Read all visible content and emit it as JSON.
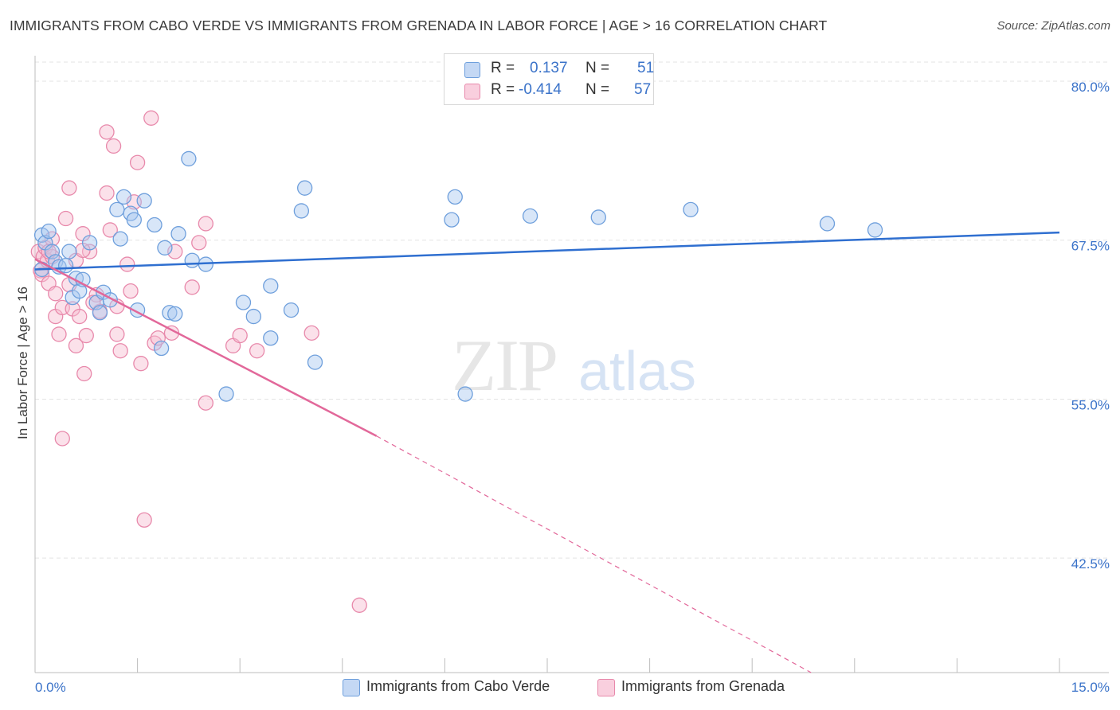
{
  "title": "IMMIGRANTS FROM CABO VERDE VS IMMIGRANTS FROM GRENADA IN LABOR FORCE | AGE > 16 CORRELATION CHART",
  "source": "Source: ZipAtlas.com",
  "watermark": {
    "zip": "ZIP",
    "atlas": "atlas"
  },
  "legend": {
    "r_label": "R =",
    "n_label": "N =",
    "series1": {
      "r": "0.137",
      "n": "51"
    },
    "series2": {
      "r": "-0.414",
      "n": "57"
    }
  },
  "colors": {
    "blue_fill": "#a9c7ef",
    "blue_stroke": "#6e9fdc",
    "blue_line": "#2f6fd0",
    "pink_fill": "#f6bcd0",
    "pink_stroke": "#e889ab",
    "pink_line": "#e2689a",
    "axis_label": "#3b73c9",
    "grid": "#e3e3e3"
  },
  "chart_data": {
    "type": "scatter",
    "title": "IMMIGRANTS FROM CABO VERDE VS IMMIGRANTS FROM GRENADA IN LABOR FORCE | AGE > 16 CORRELATION CHART",
    "xlabel": "",
    "ylabel": "In Labor Force | Age > 16",
    "xlim": [
      0,
      15
    ],
    "ylim": [
      33.5,
      82
    ],
    "x_tick_labels": [
      "0.0%",
      "15.0%"
    ],
    "y_ticks": [
      80,
      67.5,
      55,
      42.5
    ],
    "y_tick_labels": [
      "80.0%",
      "67.5%",
      "55.0%",
      "42.5%"
    ],
    "grid": true,
    "legend_position": "top-center",
    "series": [
      {
        "name": "Immigrants from Cabo Verde",
        "color": "blue",
        "r": 0.137,
        "n": 51,
        "trend": {
          "x0": 0,
          "y0": 65.2,
          "x1": 15,
          "y1": 68.1
        },
        "points": [
          [
            0.1,
            67.9
          ],
          [
            0.15,
            67.3
          ],
          [
            0.2,
            68.2
          ],
          [
            0.25,
            66.6
          ],
          [
            0.3,
            65.8
          ],
          [
            0.35,
            65.4
          ],
          [
            0.5,
            66.6
          ],
          [
            0.55,
            63.0
          ],
          [
            0.6,
            64.5
          ],
          [
            0.65,
            63.5
          ],
          [
            0.7,
            64.4
          ],
          [
            0.8,
            67.3
          ],
          [
            0.9,
            62.6
          ],
          [
            0.95,
            61.8
          ],
          [
            1.0,
            63.4
          ],
          [
            1.1,
            62.8
          ],
          [
            1.2,
            69.9
          ],
          [
            1.25,
            67.6
          ],
          [
            1.3,
            70.9
          ],
          [
            1.4,
            69.6
          ],
          [
            1.45,
            69.1
          ],
          [
            1.5,
            62.0
          ],
          [
            1.6,
            70.6
          ],
          [
            1.75,
            68.7
          ],
          [
            1.85,
            59.0
          ],
          [
            1.9,
            66.9
          ],
          [
            1.97,
            61.8
          ],
          [
            2.05,
            61.7
          ],
          [
            2.1,
            68.0
          ],
          [
            2.25,
            73.9
          ],
          [
            2.3,
            65.9
          ],
          [
            2.5,
            65.6
          ],
          [
            2.8,
            55.4
          ],
          [
            3.05,
            62.6
          ],
          [
            3.2,
            61.5
          ],
          [
            3.45,
            59.8
          ],
          [
            3.45,
            63.9
          ],
          [
            3.9,
            69.8
          ],
          [
            3.95,
            71.6
          ],
          [
            3.75,
            62.0
          ],
          [
            4.1,
            57.9
          ],
          [
            6.1,
            69.1
          ],
          [
            6.15,
            70.9
          ],
          [
            6.3,
            55.4
          ],
          [
            7.25,
            69.4
          ],
          [
            8.25,
            69.3
          ],
          [
            9.6,
            69.9
          ],
          [
            11.6,
            68.8
          ],
          [
            12.3,
            68.3
          ],
          [
            0.1,
            65.2
          ],
          [
            0.45,
            65.5
          ]
        ]
      },
      {
        "name": "Immigrants from Grenada",
        "color": "pink",
        "r": -0.414,
        "n": 57,
        "trend": {
          "x0": 0,
          "y0": 66.0,
          "x1": 5.0,
          "y1": 52.1,
          "dash_x1": 12.8,
          "dash_y1": 29.3
        },
        "points": [
          [
            0.05,
            66.6
          ],
          [
            0.08,
            65.1
          ],
          [
            0.1,
            64.8
          ],
          [
            0.12,
            66.2
          ],
          [
            0.15,
            66.9
          ],
          [
            0.18,
            65.9
          ],
          [
            0.2,
            64.1
          ],
          [
            0.25,
            66.2
          ],
          [
            0.25,
            67.6
          ],
          [
            0.3,
            63.3
          ],
          [
            0.3,
            61.5
          ],
          [
            0.35,
            60.1
          ],
          [
            0.4,
            62.2
          ],
          [
            0.4,
            51.9
          ],
          [
            0.45,
            69.2
          ],
          [
            0.5,
            71.6
          ],
          [
            0.5,
            64.0
          ],
          [
            0.55,
            62.1
          ],
          [
            0.6,
            59.2
          ],
          [
            0.65,
            61.5
          ],
          [
            0.7,
            68.0
          ],
          [
            0.72,
            57.0
          ],
          [
            0.75,
            60.0
          ],
          [
            0.8,
            66.6
          ],
          [
            0.9,
            63.2
          ],
          [
            0.95,
            61.9
          ],
          [
            1.05,
            71.2
          ],
          [
            1.1,
            68.3
          ],
          [
            1.15,
            74.9
          ],
          [
            1.2,
            60.1
          ],
          [
            1.25,
            58.8
          ],
          [
            1.35,
            65.6
          ],
          [
            1.4,
            63.5
          ],
          [
            1.45,
            70.5
          ],
          [
            1.5,
            73.6
          ],
          [
            1.55,
            57.8
          ],
          [
            1.6,
            45.5
          ],
          [
            1.7,
            77.1
          ],
          [
            1.75,
            59.4
          ],
          [
            1.8,
            59.8
          ],
          [
            2.0,
            60.2
          ],
          [
            2.05,
            66.6
          ],
          [
            2.3,
            63.8
          ],
          [
            2.4,
            67.3
          ],
          [
            2.5,
            68.8
          ],
          [
            2.5,
            54.7
          ],
          [
            2.9,
            59.2
          ],
          [
            3.0,
            60.0
          ],
          [
            3.25,
            58.8
          ],
          [
            4.05,
            60.2
          ],
          [
            4.75,
            38.8
          ],
          [
            1.05,
            76.0
          ],
          [
            0.6,
            65.9
          ],
          [
            0.7,
            66.7
          ],
          [
            1.2,
            62.3
          ],
          [
            0.85,
            62.6
          ],
          [
            0.2,
            66.6
          ]
        ]
      }
    ]
  }
}
